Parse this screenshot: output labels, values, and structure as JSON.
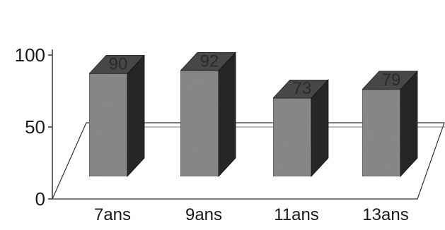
{
  "chart_data": {
    "type": "bar",
    "categories": [
      "7ans",
      "9ans",
      "11ans",
      "13ans"
    ],
    "values": [
      90,
      92,
      73,
      79
    ],
    "data_labels": [
      "90",
      "92",
      "73",
      "79"
    ],
    "title": "",
    "xlabel": "",
    "ylabel": "",
    "ylim": [
      0,
      100
    ],
    "yticks": [
      "0",
      "50",
      "100"
    ],
    "style": "3d-column",
    "grid": true,
    "legend": "none",
    "colors": {
      "bar_front": "#8c8c8c",
      "bar_top": "#4a4a4a",
      "bar_side": "#262626",
      "axis": "#333333",
      "grid": "#777777"
    }
  }
}
